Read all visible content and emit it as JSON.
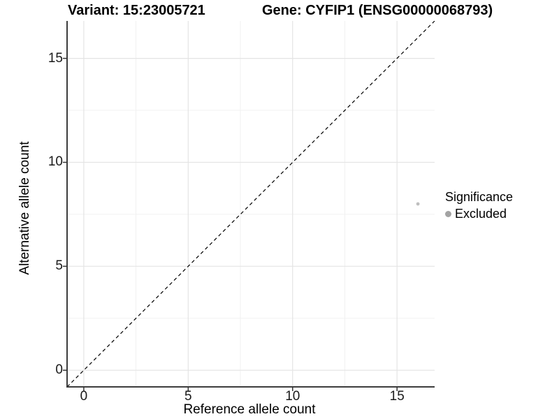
{
  "titles": {
    "variant": "Variant: 15:23005721",
    "gene": "Gene: CYFIP1 (ENSG00000068793)"
  },
  "axes": {
    "x_label": "Reference allele count",
    "y_label": "Alternative allele count"
  },
  "legend": {
    "title": "Significance",
    "items": [
      {
        "label": "Excluded",
        "color": "#a3a3a3"
      }
    ]
  },
  "colors": {
    "background": "#ffffff",
    "axis_line": "#3d3d3d",
    "tick_mark": "#333333",
    "grid_major": "#e4e4e4",
    "grid_minor": "#f1f1f1",
    "reference_line": "#000000",
    "point": "#bfbfbf",
    "tick_label": "#1a1a1a"
  },
  "chart_data": {
    "type": "scatter",
    "title": "Variant: 15:23005721 | Gene: CYFIP1 (ENSG00000068793)",
    "xlabel": "Reference allele count",
    "ylabel": "Alternative allele count",
    "xlim": [
      -0.8,
      16.8
    ],
    "ylim": [
      -0.8,
      16.8
    ],
    "x_ticks": [
      0,
      5,
      10,
      15
    ],
    "y_ticks": [
      0,
      5,
      10,
      15
    ],
    "x_minor_ticks": [
      2.5,
      7.5,
      12.5
    ],
    "y_minor_ticks": [
      2.5,
      7.5,
      12.5
    ],
    "grid": true,
    "legend_position": "right",
    "series": [
      {
        "name": "Excluded",
        "points": [
          {
            "x": 16,
            "y": 8
          }
        ]
      }
    ],
    "reference_line": {
      "type": "abline",
      "slope": 1,
      "intercept": 0,
      "style": "dashed"
    }
  }
}
